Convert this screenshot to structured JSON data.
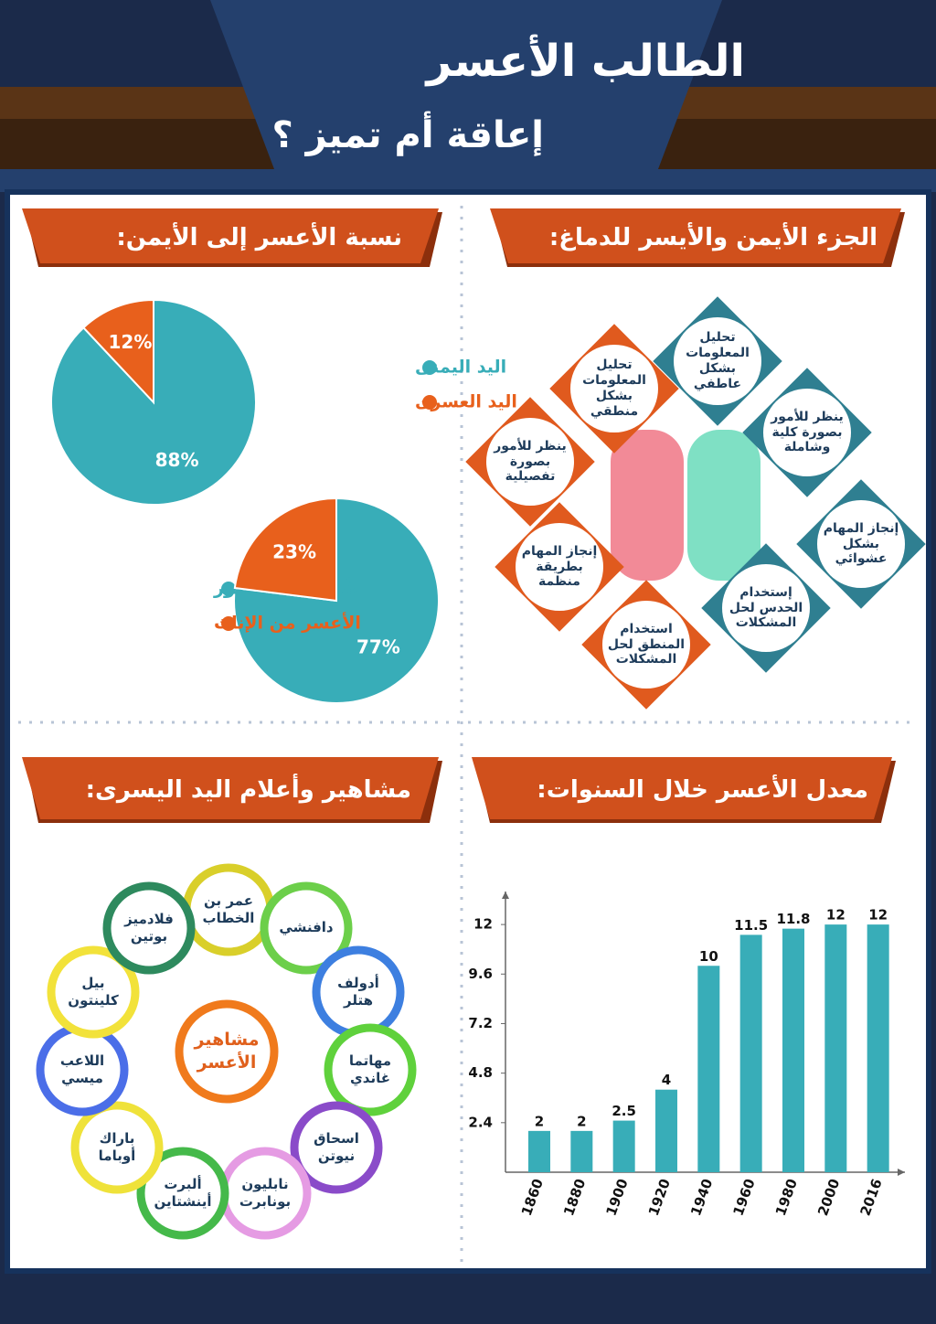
{
  "header": {
    "title": "الطالب الأعسر",
    "subtitle": "إعاقة أم تميز ؟"
  },
  "sections": {
    "brain": "الجزء الأيمن والأيسر للدماغ:",
    "ratio": "نسبة الأعسر إلى الأيمن:",
    "rate": "معدل الأعسر خلال السنوات:",
    "famous": "مشاهير وأعلام اليد اليسرى:"
  },
  "brain": {
    "right": [
      "تحليل المعلومات بشكل عاطفي",
      "ينظر للأمور بصورة كلية وشاملة",
      "إنجاز المهام بشكل عشوائي",
      "إستخدام الحدس لحل المشكلات"
    ],
    "left": [
      "تحليل المعلومات بشكل منطقي",
      "ينظر للأمور بصورة تفصيلية",
      "إنجاز المهام بطريقة منظمة",
      "استخدام المنطق لحل المشكلات"
    ]
  },
  "famous": {
    "center": "مشاهير الأعسر",
    "people": [
      "عمر بن الخطاب",
      "دافنشي",
      "أدولف هتلر",
      "مهاتما غاندي",
      "اسحاق نيوتن",
      "نابليون بونابرت",
      "ألبرت أينشتاين",
      "باراك أوباما",
      "اللاعب ميسي",
      "بيل كلينتون",
      "فلادميز بوتين"
    ]
  },
  "chart_data": [
    {
      "type": "pie",
      "categories": [
        "اليد اليمنى",
        "اليد العسرى"
      ],
      "values": [
        88,
        12
      ],
      "value_labels": [
        "88%",
        "12%"
      ],
      "colors": [
        "#38adb8",
        "#e8601c"
      ]
    },
    {
      "type": "pie",
      "categories": [
        "الأعسر من الذكور",
        "الأعسر من الإناث"
      ],
      "values": [
        77,
        23
      ],
      "value_labels": [
        "77%",
        "23%"
      ],
      "colors": [
        "#38adb8",
        "#e8601c"
      ]
    },
    {
      "type": "bar",
      "categories": [
        "1860",
        "1880",
        "1900",
        "1920",
        "1940",
        "1960",
        "1980",
        "2000",
        "2016"
      ],
      "values": [
        2,
        2,
        2.5,
        4,
        10,
        11.5,
        11.8,
        12,
        12
      ],
      "color": "#38adb8",
      "ylim": [
        0,
        13.6
      ],
      "yticks": [
        2.4,
        4.8,
        7.2,
        9.6,
        12
      ]
    }
  ]
}
